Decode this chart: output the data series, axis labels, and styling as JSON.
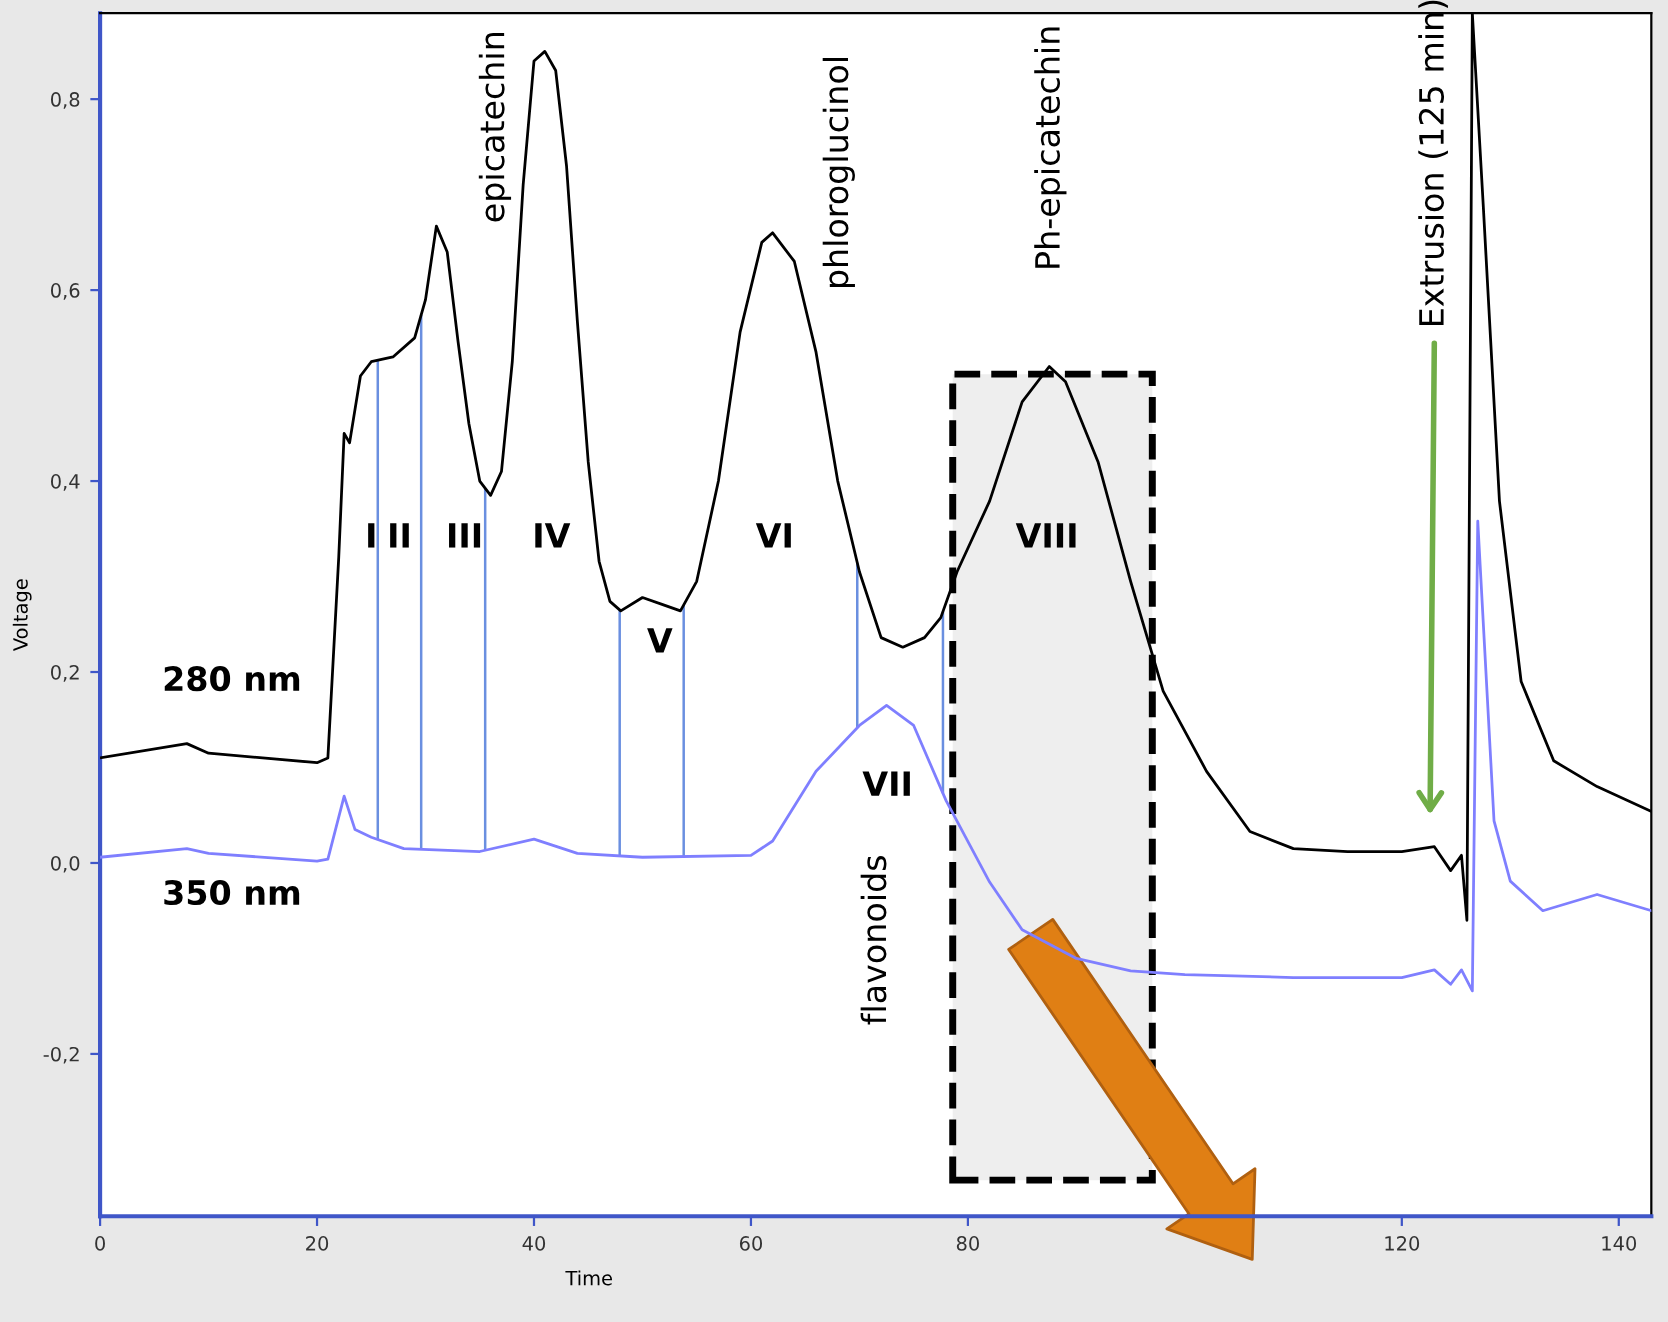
{
  "chart_data": {
    "type": "line",
    "xlabel": "Time",
    "ylabel": "Voltage",
    "xlim": [
      0,
      143
    ],
    "ylim": [
      -0.37,
      0.89
    ],
    "xticks": [
      0,
      20,
      40,
      60,
      80,
      120,
      140
    ],
    "yticks": [
      {
        "value": -0.2,
        "label": "-0,2"
      },
      {
        "value": 0,
        "label": "0,0"
      },
      {
        "value": 0.2,
        "label": "0,2"
      },
      {
        "value": 0.4,
        "label": "0,4"
      },
      {
        "value": 0.6,
        "label": "0,6"
      },
      {
        "value": 0.8,
        "label": "0,8"
      }
    ],
    "grid": false,
    "legend": false,
    "marker": "none",
    "line_style": "solid",
    "series": [
      {
        "name": "280 nm",
        "color": "#000000",
        "x": [
          0,
          8,
          10,
          20,
          21,
          22,
          22.5,
          23,
          24,
          25,
          27,
          29,
          30,
          31,
          32,
          33,
          34,
          35,
          36,
          37,
          38,
          39,
          40,
          41,
          42,
          43,
          44,
          45,
          46,
          47,
          48,
          50,
          52,
          53.5,
          55,
          57,
          59,
          61,
          62,
          64,
          66,
          68,
          70,
          72,
          74,
          76,
          77.5,
          79,
          82,
          85,
          87.5,
          89,
          92,
          95,
          98,
          102,
          106,
          110,
          115,
          120,
          123,
          124.5,
          125.5,
          126,
          126.5,
          127.5,
          129,
          131,
          134,
          138,
          143
        ],
        "values": [
          0.11,
          0.125,
          0.115,
          0.105,
          0.11,
          0.32,
          0.45,
          0.44,
          0.51,
          0.525,
          0.53,
          0.55,
          0.59,
          0.667,
          0.64,
          0.546,
          0.46,
          0.4,
          0.385,
          0.41,
          0.525,
          0.71,
          0.84,
          0.85,
          0.83,
          0.73,
          0.567,
          0.42,
          0.316,
          0.274,
          0.264,
          0.278,
          0.27,
          0.264,
          0.295,
          0.4,
          0.556,
          0.65,
          0.66,
          0.63,
          0.535,
          0.4,
          0.305,
          0.236,
          0.226,
          0.236,
          0.257,
          0.305,
          0.379,
          0.483,
          0.52,
          0.504,
          0.42,
          0.295,
          0.18,
          0.096,
          0.033,
          0.015,
          0.012,
          0.012,
          0.017,
          -0.008,
          0.008,
          -0.06,
          0.89,
          0.69,
          0.379,
          0.19,
          0.107,
          0.08,
          0.054
        ]
      },
      {
        "name": "350 nm",
        "color": "#7f7fff",
        "x": [
          0,
          8,
          10,
          20,
          21,
          22.5,
          23.5,
          25,
          28,
          35,
          40,
          44,
          50,
          60,
          62,
          66,
          70,
          72.5,
          75,
          78,
          82,
          85,
          90,
          95,
          100,
          110,
          120,
          123,
          124.5,
          125.5,
          126.5,
          127,
          128.5,
          130,
          133,
          138,
          143
        ],
        "values": [
          0.006,
          0.015,
          0.01,
          0.002,
          0.004,
          0.07,
          0.035,
          0.027,
          0.015,
          0.012,
          0.025,
          0.01,
          0.006,
          0.008,
          0.023,
          0.096,
          0.144,
          0.165,
          0.144,
          0.065,
          -0.02,
          -0.07,
          -0.1,
          -0.113,
          -0.117,
          -0.12,
          -0.12,
          -0.112,
          -0.127,
          -0.112,
          -0.134,
          0.358,
          0.044,
          -0.019,
          -0.05,
          -0.033,
          -0.05
        ]
      }
    ],
    "ref_lines": [
      {
        "axis": "x",
        "value": 25.6,
        "color": "#6a8fe0"
      },
      {
        "axis": "x",
        "value": 29.6,
        "color": "#6a8fe0"
      },
      {
        "axis": "x",
        "value": 35.5,
        "color": "#6a8fe0"
      },
      {
        "axis": "x",
        "value": 47.9,
        "color": "#6a8fe0"
      },
      {
        "axis": "x",
        "value": 53.8,
        "color": "#6a8fe0"
      },
      {
        "axis": "x",
        "value": 69.8,
        "color": "#6a8fe0"
      },
      {
        "axis": "x",
        "value": 77.7,
        "color": "#6a8fe0"
      }
    ],
    "bands": [
      {
        "axis": "x",
        "from": 78.6,
        "to": 97.0,
        "color": "#eeeeee"
      }
    ],
    "annotations": [
      "I",
      "II",
      "III",
      "IV",
      "V",
      "VI",
      "VII",
      "VIII",
      "epicatechin",
      "phloroglucinol",
      "Ph-epicatechin",
      "flavonoids",
      "Extrusion (125 min)"
    ]
  }
}
